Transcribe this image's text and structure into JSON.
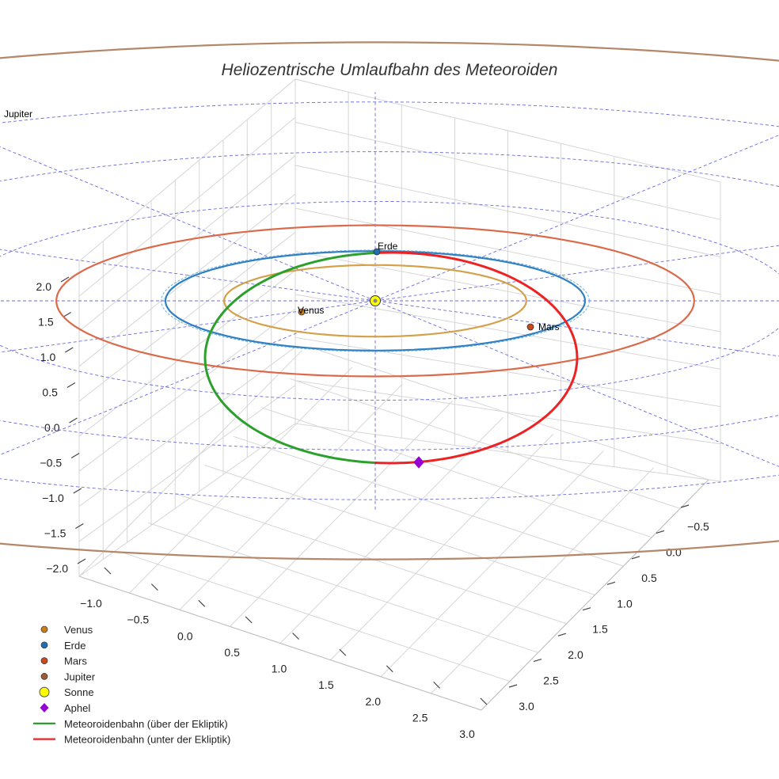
{
  "chart_data": {
    "type": "line",
    "title": "Heliozentrische Umlaufbahn des Meteoroiden",
    "projection": "3d",
    "grid": true,
    "legend_position": "bottom-left",
    "x_ticks": [
      "−1.0",
      "−0.5",
      "0.0",
      "0.5",
      "1.0",
      "1.5",
      "2.0",
      "2.5",
      "3.0"
    ],
    "y_ticks": [
      "−0.5",
      "0.0",
      "0.5",
      "1.0",
      "1.5",
      "2.0",
      "2.5",
      "3.0"
    ],
    "z_ticks": [
      "2.0",
      "1.5",
      "1.0",
      "0.5",
      "0.0",
      "−0.5",
      "−1.0",
      "−1.5",
      "−2.0"
    ],
    "xlim": [
      -1.2,
      3.0
    ],
    "ylim": [
      -0.7,
      3.2
    ],
    "zlim": [
      -2.0,
      2.2
    ],
    "orbits": [
      {
        "name": "Venus",
        "radius_au": 0.72,
        "color": "#d4a04a"
      },
      {
        "name": "Erde",
        "radius_au": 1.0,
        "color": "#2f7fc1"
      },
      {
        "name": "Mars",
        "radius_au": 1.52,
        "color": "#db6a4a"
      },
      {
        "name": "Jupiter",
        "radius_au": 5.2,
        "color": "#b5876a"
      }
    ],
    "reference_circles_au": [
      2.0,
      3.0,
      4.0
    ],
    "planets": [
      {
        "name": "Venus",
        "label": "Venus",
        "color": "#c87f1a"
      },
      {
        "name": "Erde",
        "label": "Erde",
        "color": "#1f6fb4"
      },
      {
        "name": "Mars",
        "label": "Mars",
        "color": "#cc4a1a"
      },
      {
        "name": "Jupiter",
        "label": "Jupiter",
        "color": "#9c5a36"
      }
    ],
    "sun": {
      "name": "Sonne",
      "color": "#ffff00"
    },
    "aphel": {
      "name": "Aphel",
      "color": "#9400d3"
    },
    "meteoroid": {
      "above": {
        "name": "Meteoroidenbahn (über der Ekliptik)",
        "color": "#2ca02c"
      },
      "below": {
        "name": "Meteoroidenbahn (unter der Ekliptik)",
        "color": "#ee2222"
      }
    },
    "legend": [
      {
        "label": "Venus",
        "kind": "dot",
        "color": "#c87f1a"
      },
      {
        "label": "Erde",
        "kind": "dot",
        "color": "#1f6fb4"
      },
      {
        "label": "Mars",
        "kind": "dot",
        "color": "#cc4a1a"
      },
      {
        "label": "Jupiter",
        "kind": "dot",
        "color": "#9c5a36"
      },
      {
        "label": "Sonne",
        "kind": "bigdot",
        "color": "#ffff00"
      },
      {
        "label": "Aphel",
        "kind": "diamond",
        "color": "#9400d3"
      },
      {
        "label": "Meteoroidenbahn (über der Ekliptik)",
        "kind": "line",
        "color": "#1f9a1f"
      },
      {
        "label": "Meteoroidenbahn (unter der Ekliptik)",
        "kind": "line",
        "color": "#ee2222"
      }
    ]
  }
}
